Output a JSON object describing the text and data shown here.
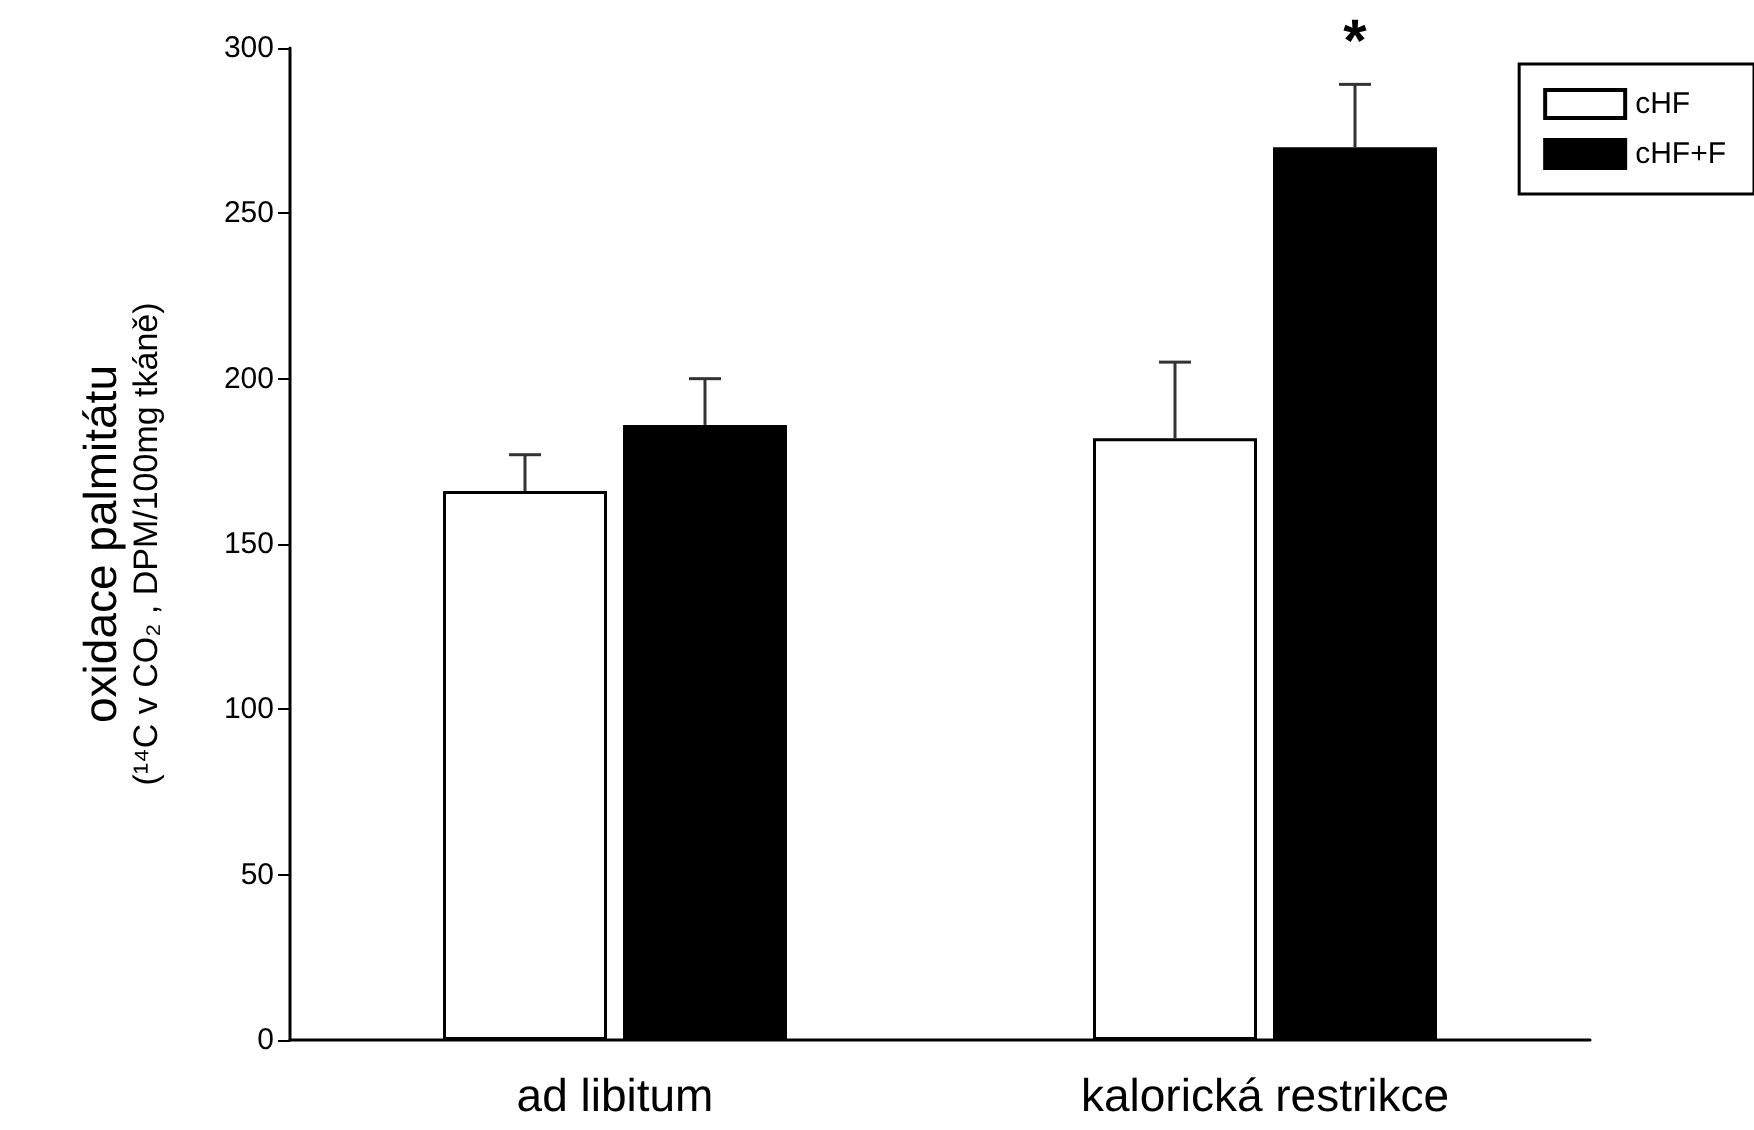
{
  "chart_data": {
    "type": "bar",
    "ylabel": "oxidace palmitátu\n(¹⁴C v CO₂ , DPM/100mg tkáně)",
    "categories": [
      "ad libitum",
      "kalorická restrikce"
    ],
    "series": [
      {
        "name": "cHF",
        "color": "#ffffff",
        "values": [
          166,
          182
        ],
        "errors": [
          [
            166,
            177
          ],
          [
            182,
            205
          ]
        ]
      },
      {
        "name": "cHF+F",
        "color": "#000000",
        "values": [
          186,
          270
        ],
        "errors": [
          [
            186,
            200
          ],
          [
            270,
            289
          ]
        ]
      }
    ],
    "annotations": [
      "*"
    ],
    "ylim": [
      0,
      300
    ],
    "yticks": [
      0,
      50,
      100,
      150,
      200,
      250,
      300
    ],
    "grid": false,
    "legend": "top right"
  }
}
